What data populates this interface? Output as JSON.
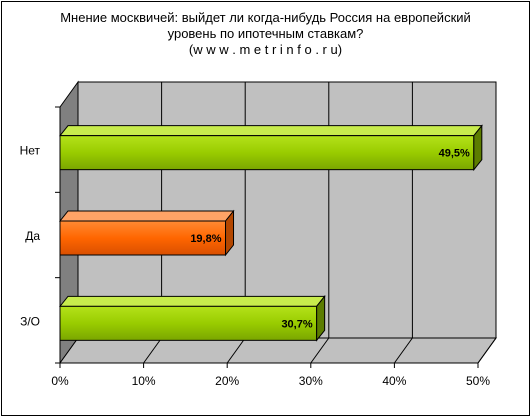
{
  "chart_data": {
    "type": "bar",
    "orientation": "horizontal",
    "title_lines": [
      "Мнение москвичей: выйдет ли когда-нибудь Россия на европейский",
      "уровень по ипотечным ставкам?",
      "(w w w . m e t r i n f o . r u)"
    ],
    "categories": [
      "Нет",
      "Да",
      "З/О"
    ],
    "values": [
      49.5,
      19.8,
      30.7
    ],
    "data_labels": [
      "49,5%",
      "19,8%",
      "30,7%"
    ],
    "bar_colors": [
      "#99cc00",
      "#ff6600",
      "#99cc00"
    ],
    "x_ticks": [
      "0%",
      "10%",
      "20%",
      "30%",
      "40%",
      "50%"
    ],
    "xlim": [
      0,
      50
    ],
    "grid": true,
    "legend": "none"
  }
}
